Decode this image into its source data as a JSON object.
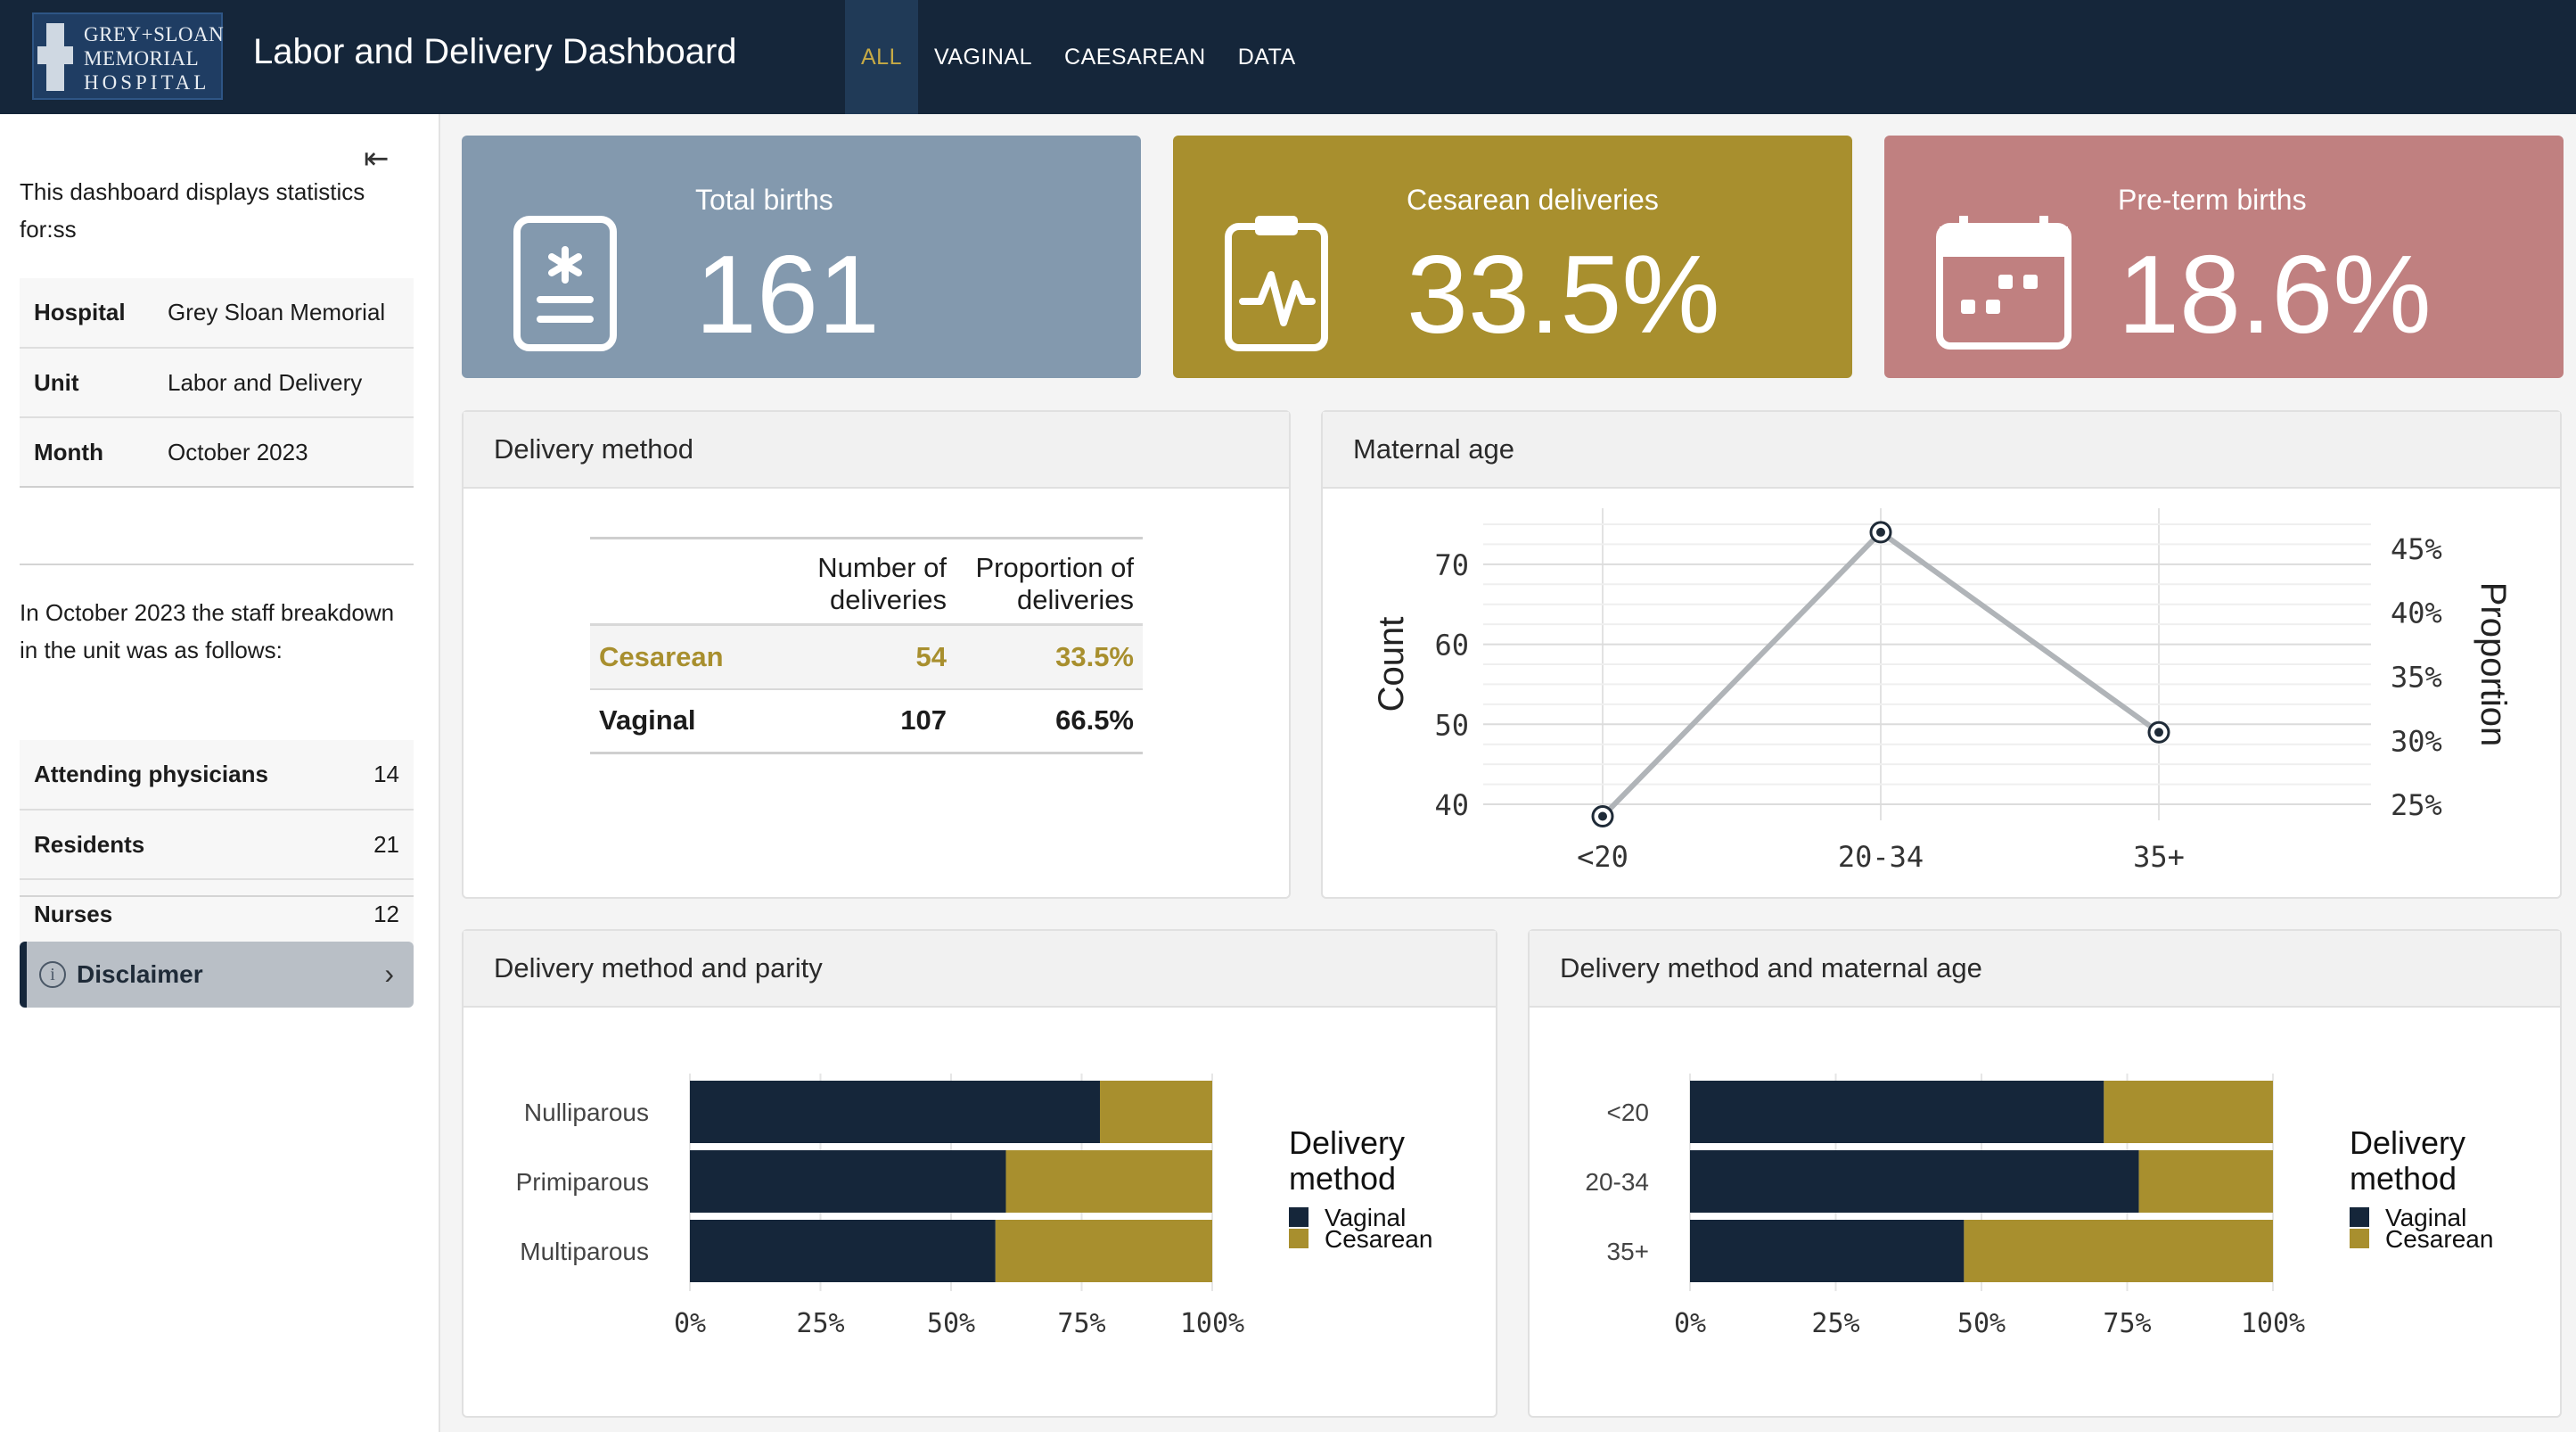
{
  "logo": {
    "line1": "GREY+SLOAN",
    "line2": "MEMORIAL",
    "line3": "HOSPITAL"
  },
  "app_title": "Labor and Delivery Dashboard",
  "nav_tabs": [
    {
      "label": "ALL",
      "active": true
    },
    {
      "label": "VAGINAL",
      "active": false
    },
    {
      "label": "CAESAREAN",
      "active": false
    },
    {
      "label": "DATA",
      "active": false
    }
  ],
  "sidebar": {
    "collapse_icon": "collapse-left-icon",
    "intro": "This dashboard displays statistics for:ss",
    "info": [
      {
        "key": "Hospital",
        "value": "Grey Sloan Memorial"
      },
      {
        "key": "Unit",
        "value": "Labor and Delivery"
      },
      {
        "key": "Month",
        "value": "October 2023"
      }
    ],
    "staff_intro": "In October 2023 the staff breakdown in the unit was as follows:",
    "staff": [
      {
        "key": "Attending physicians",
        "value": "14"
      },
      {
        "key": "Residents",
        "value": "21"
      },
      {
        "key": "Nurses",
        "value": "12"
      }
    ],
    "disclaimer": "Disclaimer"
  },
  "value_boxes": [
    {
      "title": "Total births",
      "value": "161",
      "color": "#8399ae",
      "icon": "clipboard-medical-icon"
    },
    {
      "title": "Cesarean deliveries",
      "value": "33.5%",
      "color": "#a88f2e",
      "icon": "clipboard-pulse-icon"
    },
    {
      "title": "Pre-term births",
      "value": "18.6%",
      "color": "#c08080",
      "icon": "calendar-icon"
    }
  ],
  "delivery_method": {
    "title": "Delivery method",
    "headers": [
      "",
      "Number of deliveries",
      "Proportion of deliveries"
    ],
    "rows": [
      {
        "method": "Cesarean",
        "count": "54",
        "proportion": "33.5%"
      },
      {
        "method": "Vaginal",
        "count": "107",
        "proportion": "66.5%"
      }
    ]
  },
  "maternal_age": {
    "title": "Maternal age"
  },
  "parity": {
    "title": "Delivery method and parity"
  },
  "age_method": {
    "title": "Delivery method and maternal age"
  },
  "colors": {
    "navy": "#15263a",
    "gold": "#a88f2e",
    "line": "#b0b4b8"
  },
  "chart_data": [
    {
      "type": "line",
      "title": "",
      "x": [
        "<20",
        "20-34",
        "35+"
      ],
      "series": [
        {
          "values": [
            38.5,
            74,
            49
          ]
        }
      ],
      "ylabel": "Count",
      "ylabel_right": "Proportion",
      "ylim": [
        38,
        77
      ],
      "yticks": [
        40,
        50,
        60,
        70
      ],
      "y2ticks": [
        "25%",
        "30%",
        "35%",
        "40%",
        "45%"
      ],
      "y2_values": [
        25,
        30,
        35,
        40,
        45
      ],
      "y2_at_count": [
        40,
        48,
        56,
        64,
        72
      ],
      "grid": true
    },
    {
      "type": "bar",
      "orientation": "horizontal",
      "stacked": "percent",
      "categories": [
        "Nulliparous",
        "Primiparous",
        "Multiparous"
      ],
      "series": [
        {
          "name": "Vaginal",
          "values": [
            78.5,
            60.5,
            58.5
          ]
        },
        {
          "name": "Cesarean",
          "values": [
            21.5,
            39.5,
            41.5
          ]
        }
      ],
      "xticks": [
        "0%",
        "25%",
        "50%",
        "75%",
        "100%"
      ],
      "legend_title": "Delivery method",
      "legend_position": "right"
    },
    {
      "type": "bar",
      "orientation": "horizontal",
      "stacked": "percent",
      "categories": [
        "<20",
        "20-34",
        "35+"
      ],
      "series": [
        {
          "name": "Vaginal",
          "values": [
            71,
            77,
            47
          ]
        },
        {
          "name": "Cesarean",
          "values": [
            29,
            23,
            53
          ]
        }
      ],
      "xticks": [
        "0%",
        "25%",
        "50%",
        "75%",
        "100%"
      ],
      "legend_title": "Delivery method",
      "legend_position": "right"
    }
  ]
}
